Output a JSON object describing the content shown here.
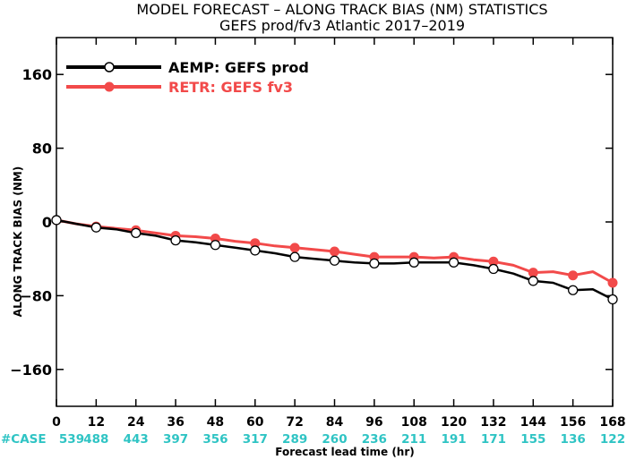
{
  "chart_data": {
    "type": "line",
    "title": "MODEL FORECAST – ALONG TRACK BIAS (NM) STATISTICS",
    "subtitle": "GEFS prod/fv3 Atlantic 2017–2019",
    "xlabel": "Forecast lead time (hr)",
    "ylabel": "ALONG TRACK BIAS (NM)",
    "x": [
      0,
      12,
      24,
      36,
      48,
      60,
      72,
      84,
      96,
      108,
      120,
      132,
      144,
      156,
      168
    ],
    "x_tick_labels": [
      "0",
      "12",
      "24",
      "36",
      "48",
      "60",
      "72",
      "84",
      "96",
      "108",
      "120",
      "132",
      "144",
      "156",
      "168"
    ],
    "y_ticks": [
      160,
      80,
      0,
      -80,
      -160
    ],
    "y_tick_labels": [
      "160",
      "80",
      "0",
      "−80",
      "−160"
    ],
    "xlim": [
      0,
      168
    ],
    "ylim": [
      -200,
      200
    ],
    "grid": false,
    "legend_position": "top-left",
    "cases_label": "#CASE",
    "cases": [
      "539",
      "488",
      "443",
      "397",
      "356",
      "317",
      "289",
      "260",
      "236",
      "211",
      "191",
      "171",
      "155",
      "136",
      "122"
    ],
    "series": [
      {
        "name": "AEMP: GEFS prod",
        "color": "#000000",
        "marker": "open-circle",
        "x": [
          0,
          6,
          12,
          18,
          24,
          30,
          36,
          42,
          48,
          54,
          60,
          66,
          72,
          78,
          84,
          90,
          96,
          102,
          108,
          114,
          120,
          126,
          132,
          138,
          144,
          150,
          156,
          162,
          168
        ],
        "y": [
          2,
          -2,
          -6,
          -8,
          -12,
          -15,
          -20,
          -22,
          -25,
          -28,
          -31,
          -34,
          -38,
          -40,
          -42,
          -44,
          -45,
          -45,
          -44,
          -44,
          -44,
          -47,
          -51,
          -56,
          -64,
          -66,
          -74,
          -73,
          -84
        ],
        "marker_x": [
          0,
          12,
          24,
          36,
          48,
          60,
          72,
          84,
          96,
          108,
          120,
          132,
          144,
          156,
          168
        ],
        "marker_y": [
          2,
          -6,
          -12,
          -20,
          -25,
          -31,
          -38,
          -42,
          -45,
          -44,
          -44,
          -51,
          -64,
          -74,
          -84
        ]
      },
      {
        "name": "RETR: GEFS fv3",
        "color": "#f24a4a",
        "marker": "filled-circle",
        "x": [
          0,
          6,
          12,
          18,
          24,
          30,
          36,
          42,
          48,
          54,
          60,
          66,
          72,
          78,
          84,
          90,
          96,
          102,
          108,
          114,
          120,
          126,
          132,
          138,
          144,
          150,
          156,
          162,
          168
        ],
        "y": [
          2,
          -2,
          -5,
          -7,
          -9,
          -12,
          -15,
          -16,
          -18,
          -21,
          -23,
          -26,
          -28,
          -30,
          -32,
          -35,
          -38,
          -38,
          -38,
          -39,
          -38,
          -41,
          -43,
          -47,
          -55,
          -54,
          -58,
          -54,
          -66
        ],
        "marker_x": [
          0,
          12,
          24,
          36,
          48,
          60,
          72,
          84,
          96,
          108,
          120,
          132,
          144,
          156,
          168
        ],
        "marker_y": [
          2,
          -5,
          -9,
          -15,
          -18,
          -23,
          -28,
          -32,
          -38,
          -38,
          -38,
          -43,
          -55,
          -58,
          -66
        ]
      }
    ]
  }
}
